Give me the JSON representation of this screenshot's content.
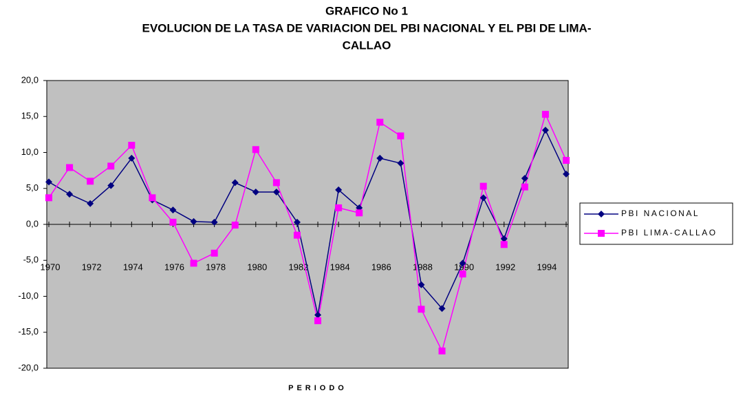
{
  "chart_data": {
    "type": "line",
    "title": "GRAFICO No 1",
    "subtitle": [
      "EVOLUCION DE LA TASA DE VARIACION DEL PBI NACIONAL Y EL PBI DE LIMA-",
      "CALLAO"
    ],
    "x_label": "PERIODO",
    "categories": [
      "1970",
      null,
      "1972",
      null,
      "1974",
      null,
      "1976",
      null,
      "1978",
      null,
      "1980",
      null,
      "1982",
      null,
      "1984",
      null,
      "1986",
      null,
      "1988",
      null,
      "1990",
      null,
      "1992",
      null,
      "1994",
      null
    ],
    "series": [
      {
        "name": "PBI NACIONAL",
        "color": "#000080",
        "marker": "diamond",
        "values": [
          5.9,
          4.2,
          2.9,
          5.4,
          9.2,
          3.4,
          2.0,
          0.4,
          0.3,
          5.8,
          4.5,
          4.5,
          0.3,
          -12.6,
          4.8,
          2.3,
          9.2,
          8.5,
          -8.4,
          -11.7,
          -5.4,
          3.7,
          -2.0,
          6.4,
          13.1,
          7.0
        ]
      },
      {
        "name": "PBI LIMA-CALLAO",
        "color": "#ff00ff",
        "marker": "square",
        "values": [
          3.7,
          7.9,
          6.0,
          8.1,
          11.0,
          3.7,
          0.3,
          -5.4,
          -4.0,
          -0.1,
          10.4,
          5.8,
          -1.5,
          -13.4,
          2.3,
          1.6,
          14.2,
          12.3,
          -11.8,
          -17.6,
          -6.9,
          5.3,
          -2.8,
          5.2,
          15.3,
          8.9
        ]
      }
    ],
    "ylim": [
      -20,
      20
    ],
    "yticks": [
      {
        "value": -20,
        "label": "-20,0"
      },
      {
        "value": -15,
        "label": "-15,0"
      },
      {
        "value": -10,
        "label": "-10,0"
      },
      {
        "value": -5,
        "label": "-5,0"
      },
      {
        "value": 0,
        "label": "0,0"
      },
      {
        "value": 5,
        "label": "5,0"
      },
      {
        "value": 10,
        "label": "10,0"
      },
      {
        "value": 15,
        "label": "15,0"
      },
      {
        "value": 20,
        "label": "20,0"
      }
    ],
    "grid": false,
    "legend": "right",
    "plot_background": "#c0c0c0"
  }
}
